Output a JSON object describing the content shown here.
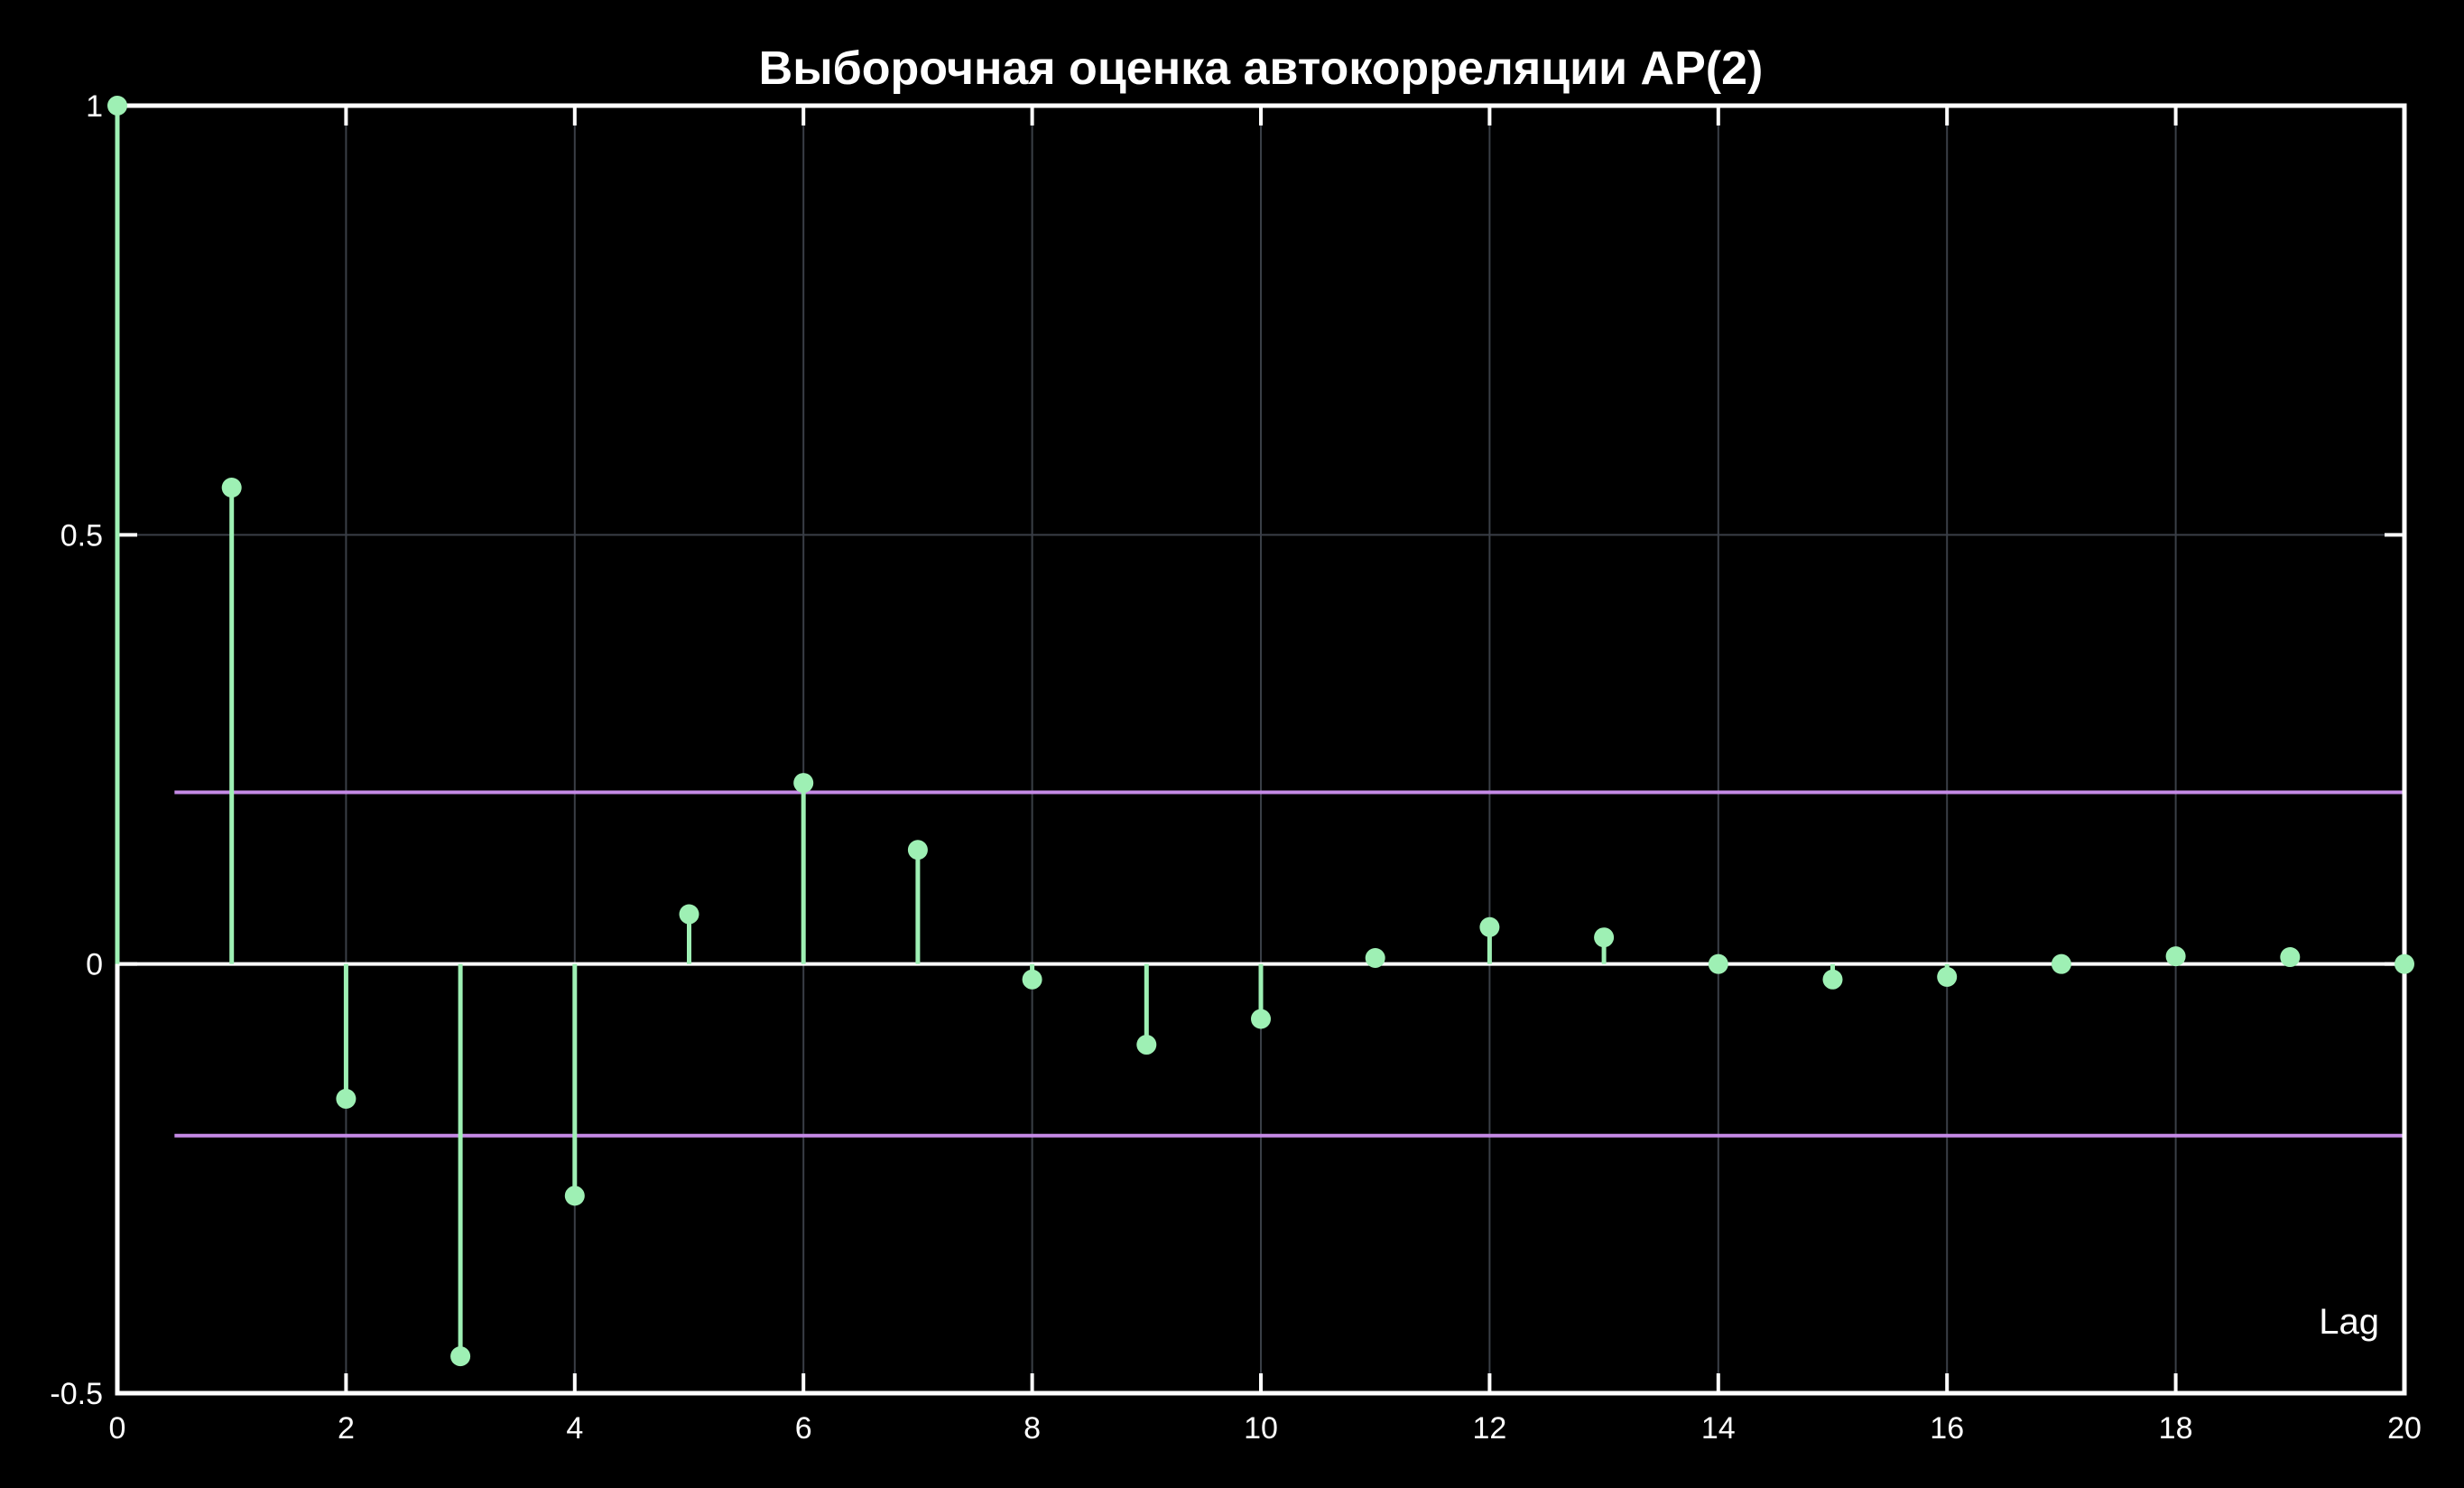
{
  "chart_data": {
    "type": "stem",
    "title": "Выборочная оценка автокорреляции АР(2)",
    "xlabel": "Lag",
    "ylabel": "",
    "xlim": [
      0,
      20
    ],
    "ylim": [
      -0.5,
      1
    ],
    "xticks": [
      0,
      2,
      4,
      6,
      8,
      10,
      12,
      14,
      16,
      18,
      20
    ],
    "xtick_labels": [
      "0",
      "2",
      "4",
      "6",
      "8",
      "10",
      "12",
      "14",
      "16",
      "18",
      "20"
    ],
    "yticks": [
      -0.5,
      0,
      0.5,
      1
    ],
    "ytick_labels": [
      "-0.5",
      "0",
      "0.5",
      "1"
    ],
    "grid": true,
    "series": [
      {
        "x": [
          0,
          1,
          2,
          3,
          4,
          5,
          6,
          7,
          8,
          9,
          10,
          11,
          12,
          13,
          14,
          15,
          16,
          17,
          18,
          19,
          20
        ],
        "values": [
          1.0,
          0.555,
          -0.157,
          -0.457,
          -0.27,
          0.058,
          0.211,
          0.133,
          -0.018,
          -0.094,
          -0.064,
          0.007,
          0.043,
          0.031,
          0.0,
          -0.018,
          -0.015,
          0.0,
          0.009,
          0.008,
          0.0
        ]
      }
    ],
    "confidence_bounds": {
      "upper": 0.2,
      "lower": -0.2,
      "x_start": 0.5,
      "x_end": 20
    },
    "colors": {
      "background": "#000000",
      "axes": "#ffffff",
      "grid": "#3a3f47",
      "stem": "#9ef0b4",
      "bounds": "#c58ae6"
    }
  }
}
